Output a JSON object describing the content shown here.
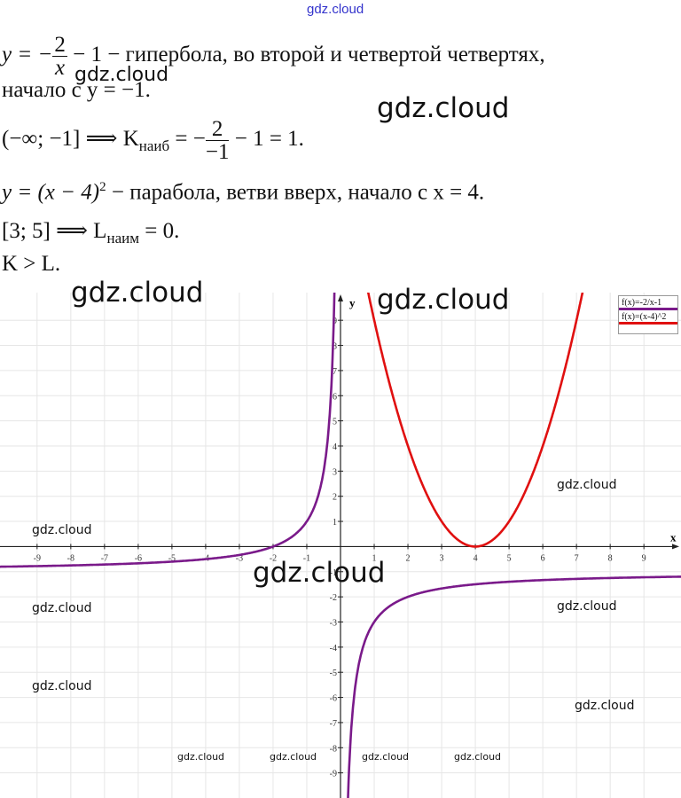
{
  "watermark": "gdz.cloud",
  "lines": {
    "l1_a": "y = −",
    "l1_num": "2",
    "l1_den": "x",
    "l1_b": " − 1 − гипербола, во второй и четвертой четвертях,",
    "l2": "начало с y = −1.",
    "l3_a": "(−∞; −1]    ⟹    K",
    "l3_sub": "наиб",
    "l3_b": " = −",
    "l3_num": "2",
    "l3_den": "−1",
    "l3_c": " − 1 = 1.",
    "l4_a": "y = (x − 4)",
    "l4_sup": "2",
    "l4_b": " − парабола, ветви вверх, начало с x = 4.",
    "l5_a": "[3; 5]    ⟹    L",
    "l5_sub": "наим",
    "l5_b": " = 0.",
    "l6": "K > L."
  },
  "chart_data": {
    "type": "line",
    "xlabel": "x",
    "ylabel": "y",
    "xlim": [
      -10.1,
      10.1
    ],
    "ylim": [
      -10,
      10.1
    ],
    "x_ticks": [
      -9,
      -8,
      -7,
      -6,
      -5,
      -4,
      -3,
      -2,
      -1,
      1,
      2,
      3,
      4,
      5,
      6,
      7,
      8,
      9
    ],
    "y_ticks": [
      -9,
      -8,
      -7,
      -6,
      -5,
      -4,
      -3,
      -2,
      -1,
      1,
      2,
      3,
      4,
      5,
      6,
      7,
      8,
      9
    ],
    "grid": true,
    "legend_position": "top-right",
    "series": [
      {
        "name": "f(x)=-2/x-1",
        "formula": "-2/x-1",
        "color": "#7a1a8a"
      },
      {
        "name": "f(x)=(x-4)^2",
        "formula": "(x-4)^2",
        "color": "#e01010"
      }
    ]
  }
}
